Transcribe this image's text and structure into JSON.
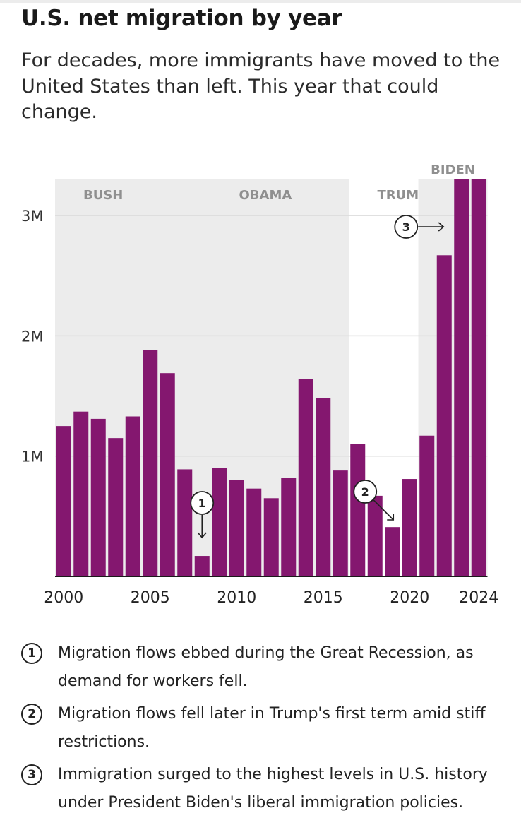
{
  "title": "U.S. net migration by year",
  "subtitle": "For decades, more immigrants have moved to the United States than left. This year that could change.",
  "chart_data": {
    "type": "bar",
    "x": [
      2000,
      2001,
      2002,
      2003,
      2004,
      2005,
      2006,
      2007,
      2008,
      2009,
      2010,
      2011,
      2012,
      2013,
      2014,
      2015,
      2016,
      2017,
      2018,
      2019,
      2020,
      2021,
      2022,
      2023,
      2024
    ],
    "values": [
      1.25,
      1.37,
      1.31,
      1.15,
      1.33,
      1.88,
      1.69,
      0.89,
      0.17,
      0.9,
      0.8,
      0.73,
      0.65,
      0.82,
      1.64,
      1.48,
      0.88,
      1.1,
      0.67,
      0.41,
      0.81,
      1.17,
      2.67,
      3.3,
      3.3
    ],
    "ylim": [
      0,
      3.3
    ],
    "y_ticks": [
      {
        "value": 1,
        "label": "1M"
      },
      {
        "value": 2,
        "label": "2M"
      },
      {
        "value": 3,
        "label": "3M"
      }
    ],
    "x_ticks": [
      {
        "value": 2000,
        "label": "2000"
      },
      {
        "value": 2005,
        "label": "2005"
      },
      {
        "value": 2010,
        "label": "2010"
      },
      {
        "value": 2015,
        "label": "2015"
      },
      {
        "value": 2020,
        "label": "2020"
      },
      {
        "value": 2024,
        "label": "2024"
      }
    ],
    "bar_color": "#84176f",
    "grid": true,
    "administrations": [
      {
        "label": "BUSH",
        "start": 2000,
        "end": 2008,
        "shaded": true,
        "label_placement": "inside"
      },
      {
        "label": "OBAMA",
        "start": 2009,
        "end": 2016,
        "shaded": true,
        "label_placement": "inside"
      },
      {
        "label": "TRUMP",
        "start": 2017,
        "end": 2020,
        "shaded": false,
        "label_placement": "inside"
      },
      {
        "label": "BIDEN",
        "start": 2021,
        "end": 2024,
        "shaded": true,
        "label_placement": "above"
      }
    ],
    "annotations": [
      {
        "id": "1",
        "year": 2008,
        "direction": "down"
      },
      {
        "id": "2",
        "year": 2018,
        "direction": "down-right"
      },
      {
        "id": "3",
        "year": 2022,
        "direction": "right"
      }
    ]
  },
  "notes": [
    {
      "num": "1",
      "text": "Migration flows ebbed during the Great Recession, as demand for workers fell."
    },
    {
      "num": "2",
      "text": "Migration flows fell later in Trump's first term amid stiff restrictions."
    },
    {
      "num": "3",
      "text": "Immigration surged to the highest levels in U.S. history under President Biden's liberal immigration policies."
    }
  ]
}
